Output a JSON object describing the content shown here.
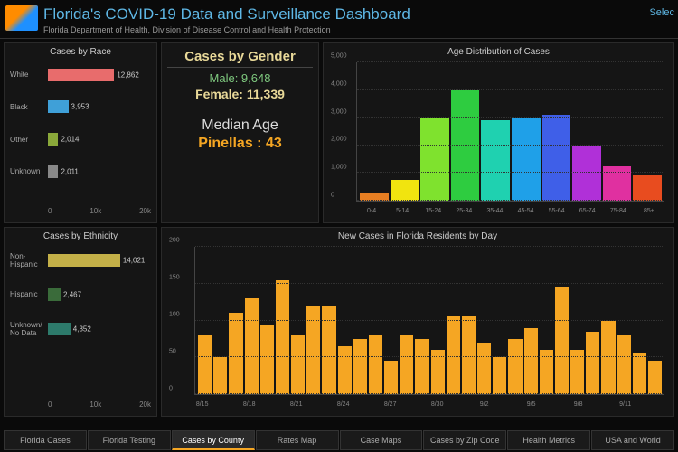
{
  "header": {
    "title": "Florida's COVID-19 Data and Surveillance Dashboard",
    "subtitle": "Florida Department of Health, Division of Disease Control and Health Protection",
    "select_label": "Selec"
  },
  "colors": {
    "background": "#0a0a0a",
    "panel": "#151515",
    "accent": "#f5a623",
    "title_color": "#5fb8e6"
  },
  "race_chart": {
    "title": "Cases by Race",
    "type": "bar-horizontal",
    "xmax": 20000,
    "xticks": [
      "0",
      "10k",
      "20k"
    ],
    "rows": [
      {
        "label": "White",
        "value": 12862,
        "color": "#e86c6c"
      },
      {
        "label": "Black",
        "value": 3953,
        "color": "#3fa0d8"
      },
      {
        "label": "Other",
        "value": 2014,
        "color": "#8aa83a"
      },
      {
        "label": "Unknown",
        "value": 2011,
        "color": "#888888"
      }
    ]
  },
  "ethnicity_chart": {
    "title": "Cases by Ethnicity",
    "type": "bar-horizontal",
    "xmax": 20000,
    "xticks": [
      "0",
      "10k",
      "20k"
    ],
    "rows": [
      {
        "label": "Non-Hispanic",
        "value": 14021,
        "color": "#c4b048"
      },
      {
        "label": "Hispanic",
        "value": 2467,
        "color": "#3a6b3a"
      },
      {
        "label": "Unknown/ No Data",
        "value": 4352,
        "color": "#2d7a6b"
      }
    ]
  },
  "gender_stats": {
    "heading": "Cases by Gender",
    "male_label": "Male: 9,648",
    "female_label": "Female: 11,339",
    "median_heading": "Median Age",
    "median_value": "Pinellas : 43"
  },
  "age_chart": {
    "title": "Age Distribution of Cases",
    "type": "bar",
    "ymax": 5000,
    "ytick_step": 1000,
    "yticks": [
      "0",
      "1,000",
      "2,000",
      "3,000",
      "4,000",
      "5,000"
    ],
    "categories": [
      "0-4",
      "5-14",
      "15-24",
      "25-34",
      "35-44",
      "45-54",
      "55-64",
      "65-74",
      "75-84",
      "85+"
    ],
    "values": [
      250,
      750,
      3000,
      4000,
      2900,
      3000,
      3100,
      2000,
      1250,
      900
    ],
    "bar_colors": [
      "#e67e22",
      "#f1e40f",
      "#7fe22e",
      "#2ecc40",
      "#1fd1b0",
      "#1fa0e8",
      "#3f5fe8",
      "#b030d8",
      "#e030a0",
      "#e84c1f"
    ]
  },
  "daily_chart": {
    "title": "New Cases in Florida Residents by Day",
    "type": "bar",
    "ymax": 200,
    "ytick_step": 50,
    "yticks": [
      "0",
      "50",
      "100",
      "150",
      "200"
    ],
    "bar_color": "#f5a623",
    "categories": [
      "8/15",
      "",
      "",
      "8/18",
      "",
      "",
      "8/21",
      "",
      "",
      "8/24",
      "",
      "",
      "8/27",
      "",
      "",
      "8/30",
      "",
      "",
      "9/2",
      "",
      "",
      "9/5",
      "",
      "",
      "9/8",
      "",
      "",
      "9/11",
      "",
      ""
    ],
    "xlabels_at": [
      0,
      3,
      6,
      9,
      12,
      15,
      18,
      21,
      24,
      27
    ],
    "xlabels": [
      "8/15",
      "8/18",
      "8/21",
      "8/24",
      "8/27",
      "8/30",
      "9/2",
      "9/5",
      "9/8",
      "9/11"
    ],
    "values": [
      80,
      50,
      110,
      130,
      95,
      155,
      80,
      120,
      120,
      65,
      75,
      80,
      45,
      80,
      75,
      60,
      105,
      105,
      70,
      50,
      75,
      90,
      60,
      145,
      60,
      85,
      100,
      80,
      55,
      45
    ]
  },
  "tabs": {
    "items": [
      "Florida Cases",
      "Florida Testing",
      "Cases by County",
      "Rates Map",
      "Case Maps",
      "Cases by Zip Code",
      "Health Metrics",
      "USA and World"
    ],
    "active_index": 2
  }
}
